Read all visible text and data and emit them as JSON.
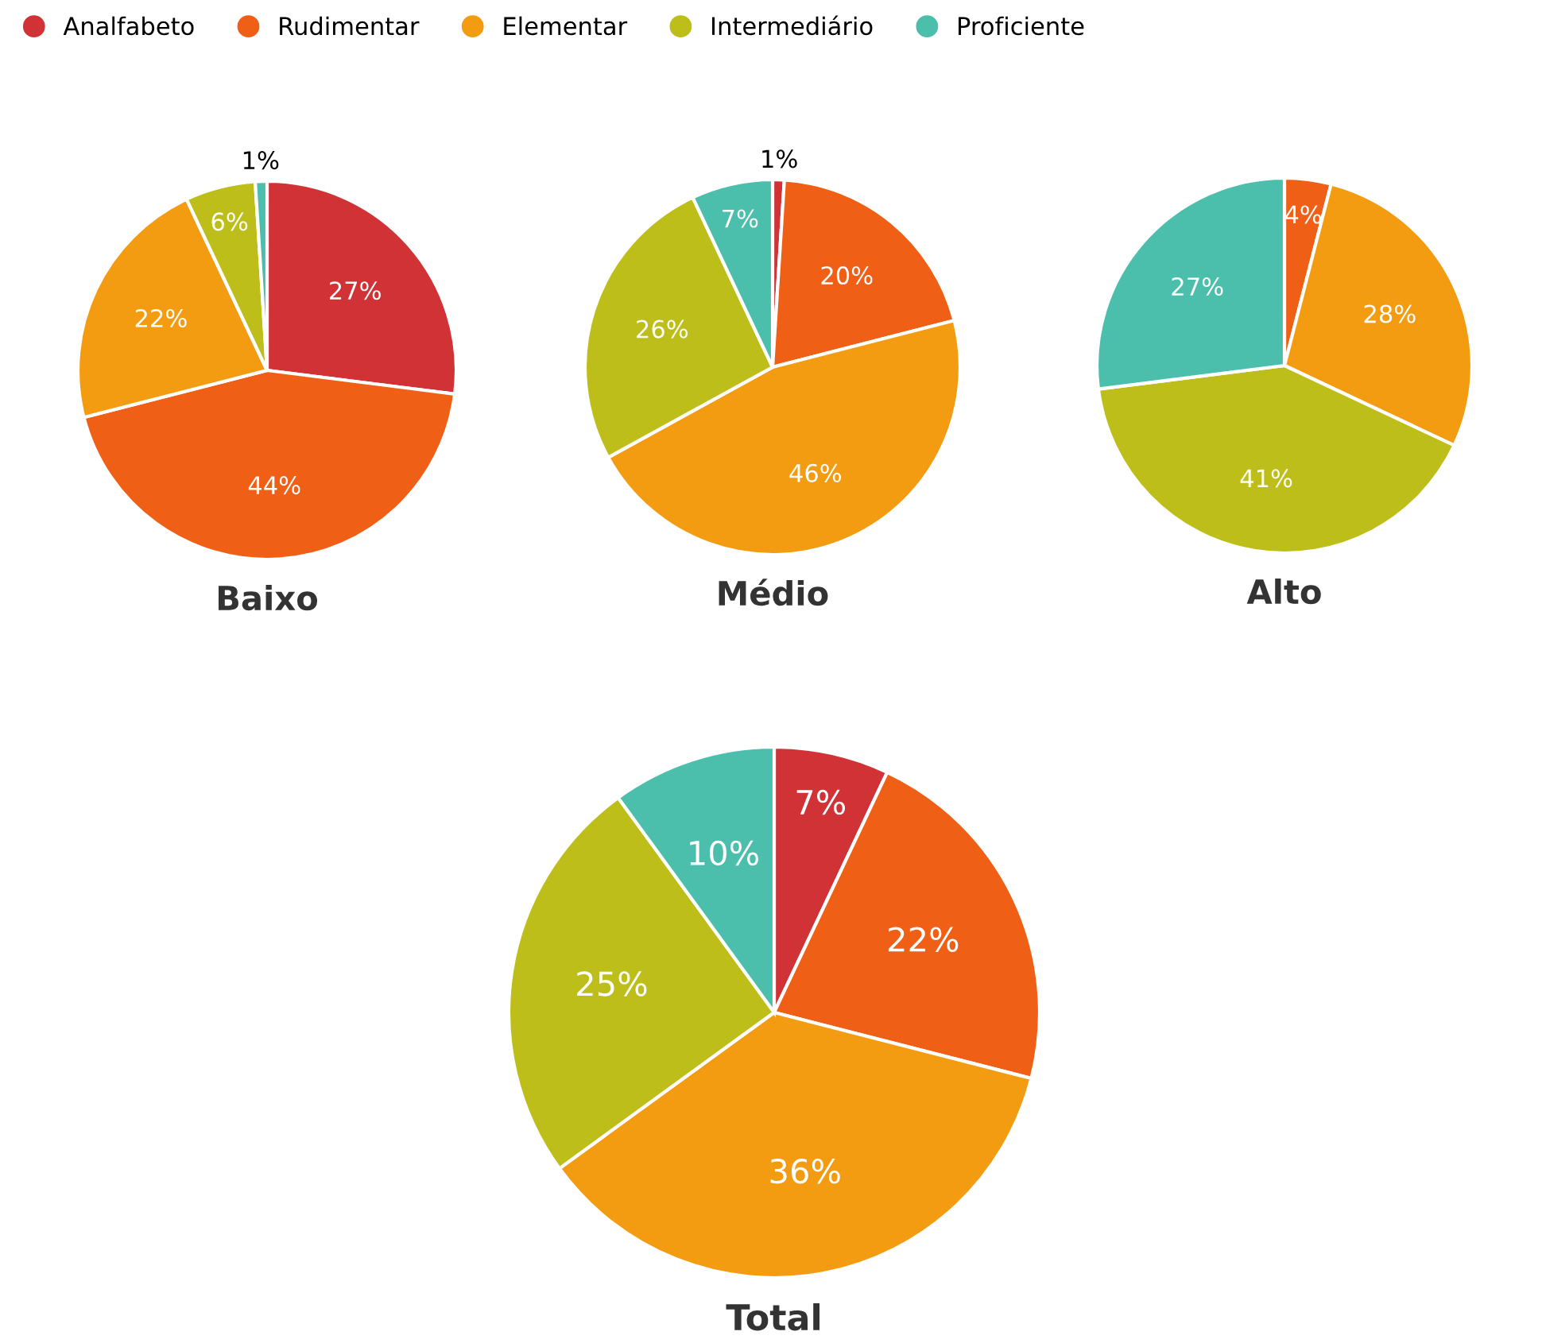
{
  "chart_data": [
    {
      "type": "pie",
      "title": "Baixo",
      "categories": [
        "Analfabeto",
        "Rudimentar",
        "Elementar",
        "Intermediário",
        "Proficiente"
      ],
      "values": [
        27,
        44,
        22,
        6,
        1
      ],
      "value_labels": [
        "27%",
        "44%",
        "22%",
        "6%",
        "1%"
      ],
      "colors": [
        "#d03236",
        "#f05f16",
        "#f39c12",
        "#bebe1a",
        "#4bbfab"
      ],
      "legend": "top right"
    },
    {
      "type": "pie",
      "title": "Médio",
      "categories": [
        null,
        null,
        null,
        null,
        null
      ],
      "values": [
        1,
        20,
        46,
        26,
        7
      ],
      "value_labels": [
        "1%",
        "20%",
        "46%",
        "26%",
        "7%"
      ],
      "colors": [
        "#d03236",
        "#f05f16",
        "#f39c12",
        "#bebe1a",
        "#4bbfab"
      ]
    },
    {
      "type": "pie",
      "title": "Alto",
      "categories": [
        null,
        null,
        null,
        null
      ],
      "values": [
        4,
        28,
        41,
        27
      ],
      "value_labels": [
        "4%",
        "28%",
        "41%",
        "27%"
      ],
      "colors": [
        "#f05f16",
        "#f39c12",
        "#bebe1a",
        "#4bbfab"
      ]
    },
    {
      "type": "pie",
      "title": "Total",
      "categories": [
        null,
        null,
        null,
        null,
        null
      ],
      "values": [
        7,
        22,
        36,
        25,
        10
      ],
      "value_labels": [
        "7%",
        "22%",
        "36%",
        "25%",
        "10%"
      ],
      "colors": [
        "#d03236",
        "#f05f16",
        "#f39c12",
        "#bebe1a",
        "#4bbfab"
      ]
    }
  ]
}
